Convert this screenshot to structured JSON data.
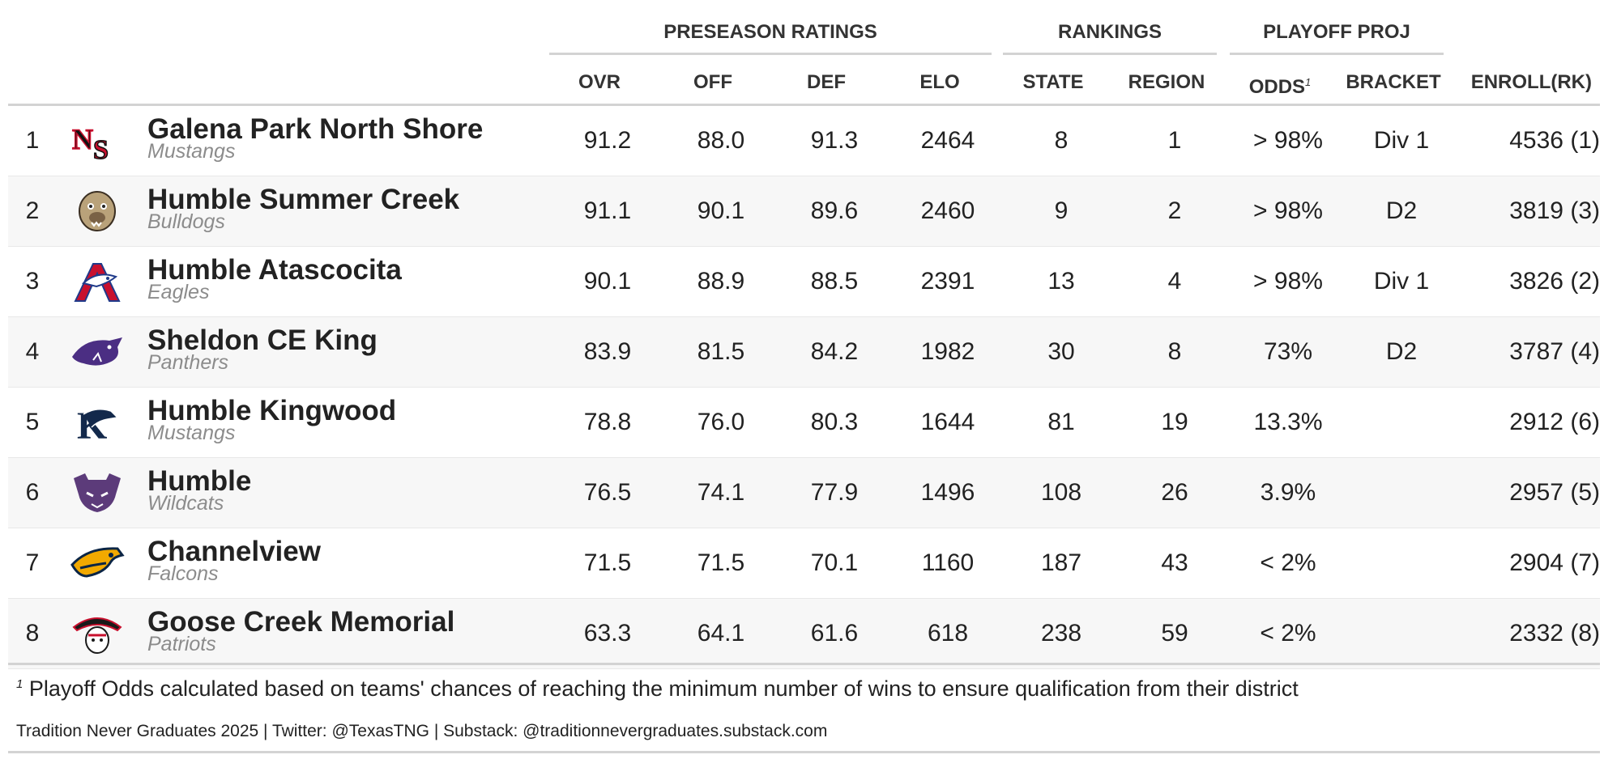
{
  "spanners": {
    "ratings": "PRESEASON RATINGS",
    "rankings": "RANKINGS",
    "playoff": "PLAYOFF PROJ"
  },
  "columns": {
    "ovr": "OVR",
    "off": "OFF",
    "def": "DEF",
    "elo": "ELO",
    "state": "STATE",
    "region": "REGION",
    "odds": "ODDS",
    "odds_mark": "1",
    "bracket": "BRACKET",
    "enroll": "ENROLL(RK)"
  },
  "rows": [
    {
      "rank": "1",
      "name": "Galena Park North Shore",
      "mascot": "Mustangs",
      "logo": "north-shore-logo",
      "ovr": "91.2",
      "off": "88.0",
      "def": "91.3",
      "elo": "2464",
      "state": "8",
      "region": "1",
      "odds": "> 98%",
      "bracket": "Div 1",
      "enroll": "4536 (1)"
    },
    {
      "rank": "2",
      "name": "Humble Summer Creek",
      "mascot": "Bulldogs",
      "logo": "bulldog-logo",
      "ovr": "91.1",
      "off": "90.1",
      "def": "89.6",
      "elo": "2460",
      "state": "9",
      "region": "2",
      "odds": "> 98%",
      "bracket": "D2",
      "enroll": "3819 (3)"
    },
    {
      "rank": "3",
      "name": "Humble Atascocita",
      "mascot": "Eagles",
      "logo": "eagle-logo",
      "ovr": "90.1",
      "off": "88.9",
      "def": "88.5",
      "elo": "2391",
      "state": "13",
      "region": "4",
      "odds": "> 98%",
      "bracket": "Div 1",
      "enroll": "3826 (2)"
    },
    {
      "rank": "4",
      "name": "Sheldon CE King",
      "mascot": "Panthers",
      "logo": "panther-logo",
      "ovr": "83.9",
      "off": "81.5",
      "def": "84.2",
      "elo": "1982",
      "state": "30",
      "region": "8",
      "odds": "73%",
      "bracket": "D2",
      "enroll": "3787 (4)"
    },
    {
      "rank": "5",
      "name": "Humble Kingwood",
      "mascot": "Mustangs",
      "logo": "kingwood-logo",
      "ovr": "78.8",
      "off": "76.0",
      "def": "80.3",
      "elo": "1644",
      "state": "81",
      "region": "19",
      "odds": "13.3%",
      "bracket": "",
      "enroll": "2912 (6)"
    },
    {
      "rank": "6",
      "name": "Humble",
      "mascot": "Wildcats",
      "logo": "wildcat-logo",
      "ovr": "76.5",
      "off": "74.1",
      "def": "77.9",
      "elo": "1496",
      "state": "108",
      "region": "26",
      "odds": "3.9%",
      "bracket": "",
      "enroll": "2957 (5)"
    },
    {
      "rank": "7",
      "name": "Channelview",
      "mascot": "Falcons",
      "logo": "falcon-logo",
      "ovr": "71.5",
      "off": "71.5",
      "def": "70.1",
      "elo": "1160",
      "state": "187",
      "region": "43",
      "odds": "< 2%",
      "bracket": "",
      "enroll": "2904 (7)"
    },
    {
      "rank": "8",
      "name": "Goose Creek Memorial",
      "mascot": "Patriots",
      "logo": "patriot-logo",
      "ovr": "63.3",
      "off": "64.1",
      "def": "61.6",
      "elo": "618",
      "state": "238",
      "region": "59",
      "odds": "< 2%",
      "bracket": "",
      "enroll": "2332 (8)"
    }
  ],
  "footnote": {
    "mark": "1",
    "text": "Playoff Odds calculated based on teams' chances of reaching the minimum number of wins to ensure qualification from their district"
  },
  "credit": "Tradition Never Graduates 2025 | Twitter: @TexasTNG | Substack: @traditionnevergraduates.substack.com",
  "colors": {
    "rule": "#d3d3d3",
    "alt_row": "#f7f7f7",
    "mascot": "#8c8c8c"
  }
}
